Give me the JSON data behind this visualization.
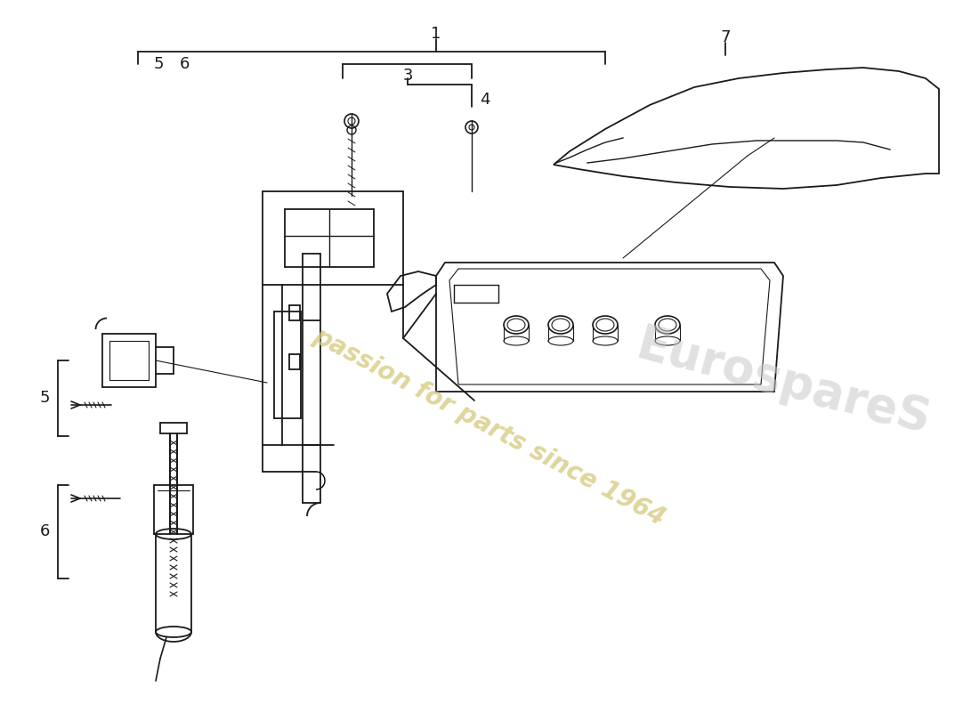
{
  "background_color": "#ffffff",
  "line_color": "#1a1a1a",
  "watermark_text": "passion for parts since 1964",
  "watermark_color": "#d4c87a",
  "logo_color": "#cccccc",
  "figsize": [
    11.0,
    8.0
  ],
  "dpi": 100
}
